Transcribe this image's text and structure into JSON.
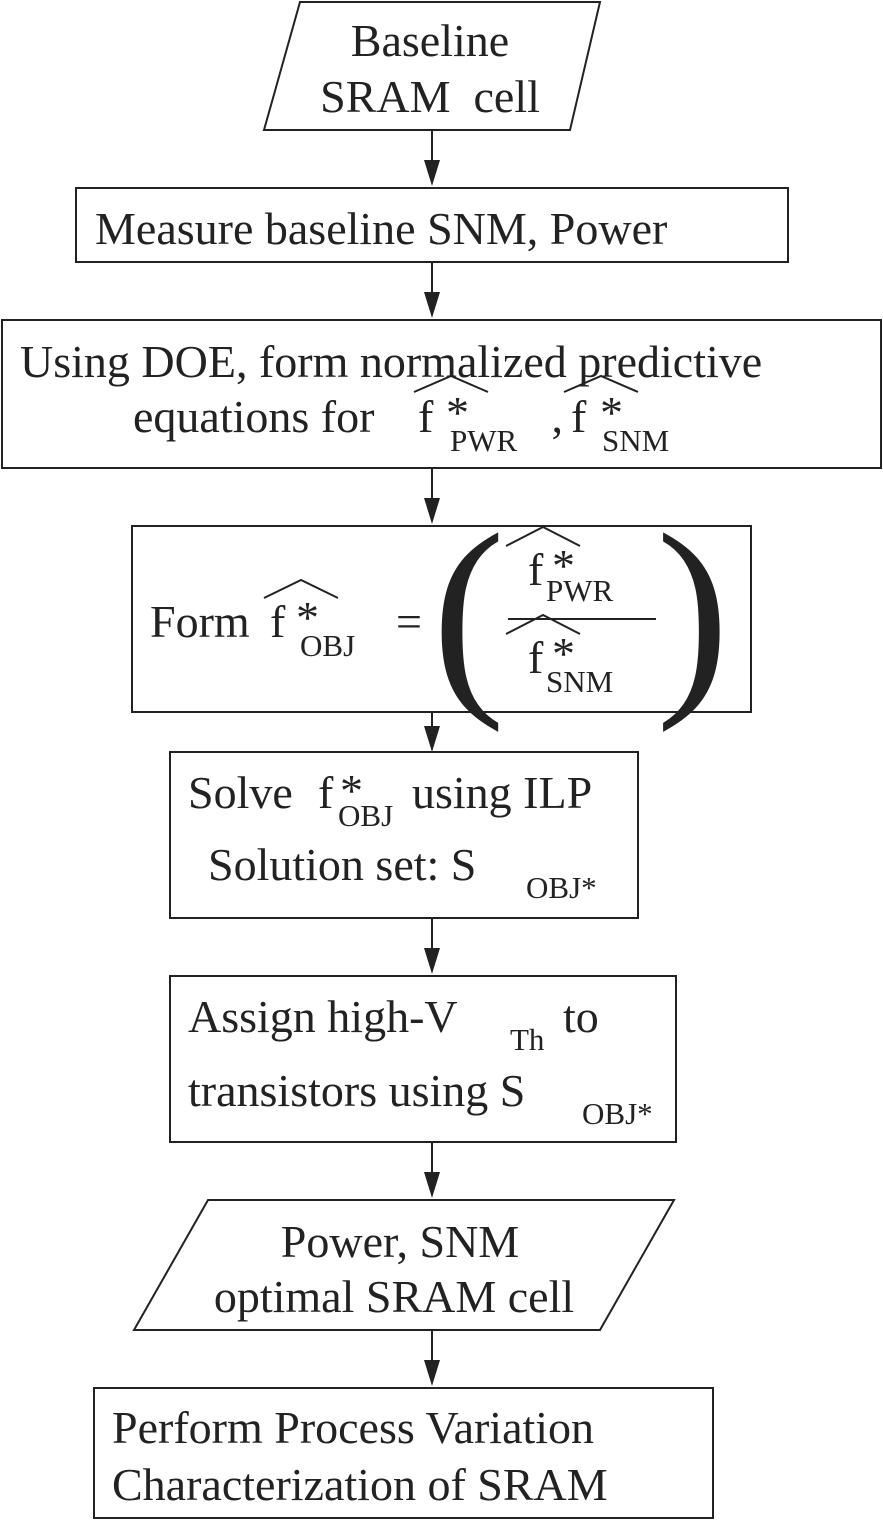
{
  "steps": {
    "input": {
      "line1": "Baseline",
      "line2": "SRAM  cell"
    },
    "measure": {
      "text": "Measure baseline SNM, Power"
    },
    "doe": {
      "line1": "Using DOE, form normalized predictive",
      "line2_prefix": "equations for ",
      "f_symbol": "f",
      "star": "*",
      "sub_pwr": "PWR",
      "separator": " , ",
      "sub_snm": "SNM"
    },
    "form": {
      "prefix": "Form ",
      "f_symbol": "f",
      "star": "*",
      "sub_obj": "OBJ",
      "equals": "=",
      "open_paren": "(",
      "close_paren": ")",
      "sub_pwr": "PWR",
      "sub_snm": "SNM"
    },
    "solve": {
      "line1_prefix": "Solve ",
      "f_symbol": "f",
      "star": "*",
      "sub_obj": "OBJ",
      "line1_suffix": "using ILP",
      "line2_prefix": "Solution set: S",
      "sub_set": "OBJ*"
    },
    "assign": {
      "line1_prefix": "Assign high-V",
      "sub_th": "Th",
      "line1_suffix": "to",
      "line2_prefix": "transistors using S",
      "sub_set": "OBJ*"
    },
    "output": {
      "line1": "Power, SNM",
      "line2": "optimal SRAM cell"
    },
    "perform": {
      "line1": "Perform Process Variation",
      "line2": "Characterization of SRAM"
    }
  }
}
